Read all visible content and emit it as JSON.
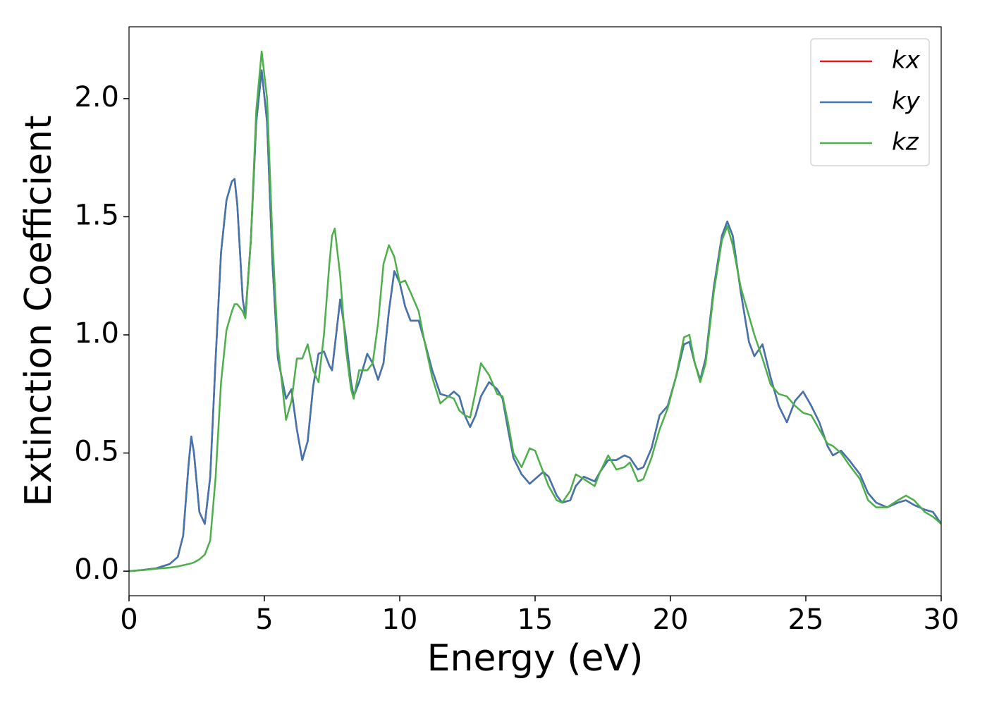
{
  "chart_data": {
    "type": "line",
    "xlabel": "Energy (eV)",
    "ylabel": "Extinction Coefficient",
    "xlim": [
      0,
      30
    ],
    "ylim": [
      -0.104,
      2.304
    ],
    "xticks": [
      0,
      5,
      10,
      15,
      20,
      25,
      30
    ],
    "yticks": [
      {
        "value": 0,
        "label": "0.0"
      },
      {
        "value": 0.5,
        "label": "0.5"
      },
      {
        "value": 1,
        "label": "1.0"
      },
      {
        "value": 1.5,
        "label": "1.5"
      },
      {
        "value": 2,
        "label": "2.0"
      }
    ],
    "legend": "upper right",
    "x": [
      0,
      0.5,
      1,
      1.5,
      1.8,
      2.0,
      2.2,
      2.3,
      2.4,
      2.6,
      2.8,
      3.0,
      3.2,
      3.4,
      3.6,
      3.8,
      3.9,
      4.0,
      4.2,
      4.3,
      4.5,
      4.7,
      4.9,
      5.1,
      5.3,
      5.5,
      5.8,
      6.0,
      6.2,
      6.4,
      6.6,
      6.8,
      7.0,
      7.2,
      7.4,
      7.5,
      7.6,
      7.8,
      8.0,
      8.2,
      8.3,
      8.5,
      8.8,
      9.0,
      9.2,
      9.4,
      9.6,
      9.8,
      10.0,
      10.2,
      10.4,
      10.7,
      10.9,
      11.2,
      11.5,
      11.8,
      12.0,
      12.2,
      12.4,
      12.6,
      12.8,
      13.0,
      13.3,
      13.6,
      13.8,
      14.0,
      14.2,
      14.5,
      14.8,
      15.0,
      15.3,
      15.5,
      15.8,
      16.0,
      16.3,
      16.5,
      16.8,
      17.2,
      17.4,
      17.7,
      18.0,
      18.3,
      18.5,
      18.8,
      19.0,
      19.3,
      19.6,
      19.9,
      20.2,
      20.5,
      20.7,
      20.9,
      21.1,
      21.3,
      21.6,
      21.9,
      22.1,
      22.3,
      22.6,
      22.9,
      23.1,
      23.4,
      23.7,
      24.0,
      24.3,
      24.6,
      24.9,
      25.2,
      25.5,
      25.8,
      26.0,
      26.3,
      26.6,
      27.0,
      27.3,
      27.6,
      28.0,
      28.4,
      28.7,
      29.0,
      29.4,
      29.7,
      30.0
    ],
    "series": [
      {
        "name": "kx",
        "color": "#e41a1c",
        "values": [
          0,
          0.005,
          0.012,
          0.03,
          0.06,
          0.15,
          0.45,
          0.57,
          0.5,
          0.25,
          0.2,
          0.4,
          0.9,
          1.35,
          1.57,
          1.65,
          1.66,
          1.55,
          1.15,
          1.08,
          1.4,
          1.9,
          2.12,
          1.9,
          1.3,
          0.9,
          0.73,
          0.77,
          0.6,
          0.47,
          0.55,
          0.78,
          0.92,
          0.93,
          0.87,
          0.85,
          0.95,
          1.15,
          1.0,
          0.8,
          0.74,
          0.8,
          0.92,
          0.88,
          0.81,
          0.88,
          1.1,
          1.27,
          1.22,
          1.12,
          1.06,
          1.06,
          0.98,
          0.85,
          0.75,
          0.74,
          0.76,
          0.74,
          0.66,
          0.61,
          0.66,
          0.74,
          0.8,
          0.77,
          0.73,
          0.6,
          0.48,
          0.41,
          0.37,
          0.39,
          0.42,
          0.4,
          0.32,
          0.29,
          0.3,
          0.36,
          0.4,
          0.38,
          0.42,
          0.47,
          0.47,
          0.49,
          0.48,
          0.43,
          0.44,
          0.52,
          0.66,
          0.7,
          0.82,
          0.96,
          0.97,
          0.88,
          0.81,
          0.9,
          1.2,
          1.42,
          1.48,
          1.42,
          1.18,
          0.97,
          0.91,
          0.96,
          0.82,
          0.7,
          0.63,
          0.72,
          0.76,
          0.7,
          0.63,
          0.53,
          0.49,
          0.51,
          0.47,
          0.41,
          0.33,
          0.29,
          0.27,
          0.29,
          0.3,
          0.28,
          0.26,
          0.25,
          0.2
        ]
      },
      {
        "name": "ky",
        "color": "#3f75b0",
        "values": [
          0,
          0.005,
          0.012,
          0.03,
          0.06,
          0.15,
          0.45,
          0.57,
          0.5,
          0.25,
          0.2,
          0.4,
          0.9,
          1.35,
          1.57,
          1.65,
          1.66,
          1.55,
          1.15,
          1.08,
          1.4,
          1.9,
          2.12,
          1.9,
          1.3,
          0.9,
          0.73,
          0.77,
          0.6,
          0.47,
          0.55,
          0.78,
          0.92,
          0.93,
          0.87,
          0.85,
          0.95,
          1.15,
          1.0,
          0.8,
          0.74,
          0.8,
          0.92,
          0.88,
          0.81,
          0.88,
          1.1,
          1.27,
          1.22,
          1.12,
          1.06,
          1.06,
          0.98,
          0.85,
          0.75,
          0.74,
          0.76,
          0.74,
          0.66,
          0.61,
          0.66,
          0.74,
          0.8,
          0.77,
          0.73,
          0.6,
          0.48,
          0.41,
          0.37,
          0.39,
          0.42,
          0.4,
          0.32,
          0.29,
          0.3,
          0.36,
          0.4,
          0.38,
          0.42,
          0.47,
          0.47,
          0.49,
          0.48,
          0.43,
          0.44,
          0.52,
          0.66,
          0.7,
          0.82,
          0.96,
          0.97,
          0.88,
          0.81,
          0.9,
          1.2,
          1.42,
          1.48,
          1.42,
          1.18,
          0.97,
          0.91,
          0.96,
          0.82,
          0.7,
          0.63,
          0.72,
          0.76,
          0.7,
          0.63,
          0.53,
          0.49,
          0.51,
          0.47,
          0.41,
          0.33,
          0.29,
          0.27,
          0.29,
          0.3,
          0.28,
          0.26,
          0.25,
          0.2
        ]
      },
      {
        "name": "kz",
        "color": "#4daf4a",
        "values": [
          0,
          0.004,
          0.01,
          0.015,
          0.02,
          0.025,
          0.03,
          0.033,
          0.037,
          0.05,
          0.07,
          0.13,
          0.4,
          0.8,
          1.02,
          1.1,
          1.13,
          1.13,
          1.1,
          1.07,
          1.4,
          1.95,
          2.2,
          2.0,
          1.4,
          0.95,
          0.64,
          0.72,
          0.9,
          0.9,
          0.96,
          0.85,
          0.8,
          1.0,
          1.3,
          1.42,
          1.45,
          1.25,
          0.95,
          0.77,
          0.73,
          0.85,
          0.85,
          0.88,
          1.05,
          1.3,
          1.38,
          1.33,
          1.22,
          1.23,
          1.18,
          1.1,
          0.98,
          0.82,
          0.71,
          0.74,
          0.73,
          0.68,
          0.66,
          0.65,
          0.76,
          0.88,
          0.83,
          0.75,
          0.74,
          0.63,
          0.5,
          0.44,
          0.52,
          0.51,
          0.42,
          0.36,
          0.3,
          0.29,
          0.34,
          0.41,
          0.39,
          0.36,
          0.42,
          0.49,
          0.43,
          0.44,
          0.46,
          0.38,
          0.39,
          0.48,
          0.6,
          0.69,
          0.82,
          0.99,
          1.0,
          0.88,
          0.8,
          0.88,
          1.18,
          1.4,
          1.46,
          1.38,
          1.2,
          1.08,
          1.0,
          0.9,
          0.79,
          0.75,
          0.74,
          0.7,
          0.67,
          0.66,
          0.6,
          0.54,
          0.53,
          0.5,
          0.45,
          0.39,
          0.3,
          0.27,
          0.27,
          0.3,
          0.32,
          0.3,
          0.25,
          0.23,
          0.2
        ]
      }
    ]
  }
}
